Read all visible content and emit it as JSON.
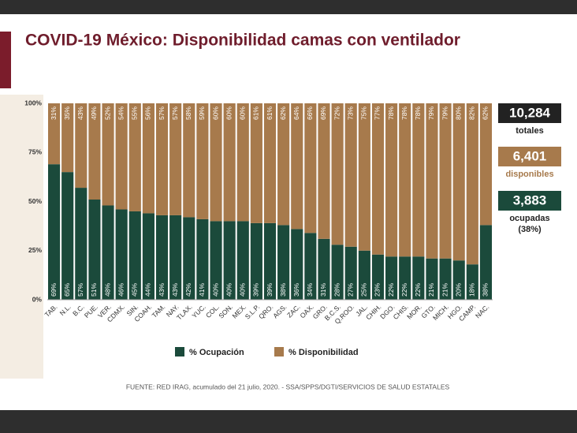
{
  "chart_data": {
    "type": "stacked_bar",
    "title": "COVID-19 México: Disponibilidad camas con ventilador",
    "categories": [
      "TAB.",
      "N.L.",
      "B.C.",
      "PUE.",
      "VER.",
      "CDMX.",
      "SIN.",
      "COAH.",
      "TAM.",
      "NAY.",
      "TLAX.",
      "YUC.",
      "COL.",
      "SON.",
      "MEX.",
      "S.L.P.",
      "QRO.",
      "AGS.",
      "ZAC.",
      "OAX.",
      "GRO.",
      "B.C.S.",
      "Q.ROO.",
      "JAL.",
      "CHIH.",
      "DGO.",
      "CHIS.",
      "MOR.",
      "GTO.",
      "MICH.",
      "HGO.",
      "CAMP.",
      "NAC."
    ],
    "series": [
      {
        "name": "% Ocupación",
        "color": "#1b4a3b",
        "values": [
          69,
          65,
          57,
          51,
          48,
          46,
          45,
          44,
          43,
          43,
          42,
          41,
          40,
          40,
          40,
          39,
          39,
          38,
          36,
          34,
          31,
          28,
          27,
          25,
          23,
          22,
          22,
          22,
          21,
          21,
          20,
          18,
          38
        ],
        "value_labels": [
          "69%",
          "65%",
          "57%",
          "51%",
          "48%",
          "46%",
          "45%",
          "44%",
          "43%",
          "43%",
          "42%",
          "41%",
          "40%",
          "40%",
          "40%",
          "39%",
          "39%",
          "38%",
          "36%",
          "34%",
          "31%",
          "28%",
          "27%",
          "25%",
          "23%",
          "22%",
          "22%",
          "22%",
          "21%",
          "21%",
          "20%",
          "18%",
          "38%"
        ]
      },
      {
        "name": "% Disponibilidad",
        "color": "#a77a4c",
        "values": [
          31,
          35,
          43,
          49,
          52,
          54,
          55,
          56,
          57,
          57,
          58,
          59,
          60,
          60,
          60,
          61,
          61,
          62,
          64,
          66,
          69,
          72,
          73,
          75,
          77,
          78,
          78,
          78,
          79,
          79,
          80,
          82,
          62
        ],
        "value_labels": [
          "31%",
          "35%",
          "43%",
          "49%",
          "52%",
          "54%",
          "55%",
          "56%",
          "57%",
          "57%",
          "58%",
          "59%",
          "60%",
          "60%",
          "60%",
          "61%",
          "61%",
          "62%",
          "64%",
          "66%",
          "69%",
          "72%",
          "73%",
          "75%",
          "77%",
          "78%",
          "78%",
          "78%",
          "79%",
          "79%",
          "80%",
          "82%",
          "62%"
        ]
      }
    ],
    "ylim": [
      0,
      100
    ],
    "yticks": [
      {
        "value": 0,
        "label": "0%"
      },
      {
        "value": 25,
        "label": "25%"
      },
      {
        "value": 50,
        "label": "50%"
      },
      {
        "value": 75,
        "label": "75%"
      },
      {
        "value": 100,
        "label": "100%"
      }
    ],
    "grid": false
  },
  "summary": [
    {
      "value": "10,284",
      "label": "totales"
    },
    {
      "value": "6,401",
      "label": "disponibles"
    },
    {
      "value": "3,883",
      "label": "ocupadas",
      "note": "(38%)"
    }
  ],
  "footer": "FUENTE: RED IRAG, acumulado del 21 julio, 2020. -  SSA/SPPS/DGTI/SERVICIOS DE SALUD ESTATALES"
}
